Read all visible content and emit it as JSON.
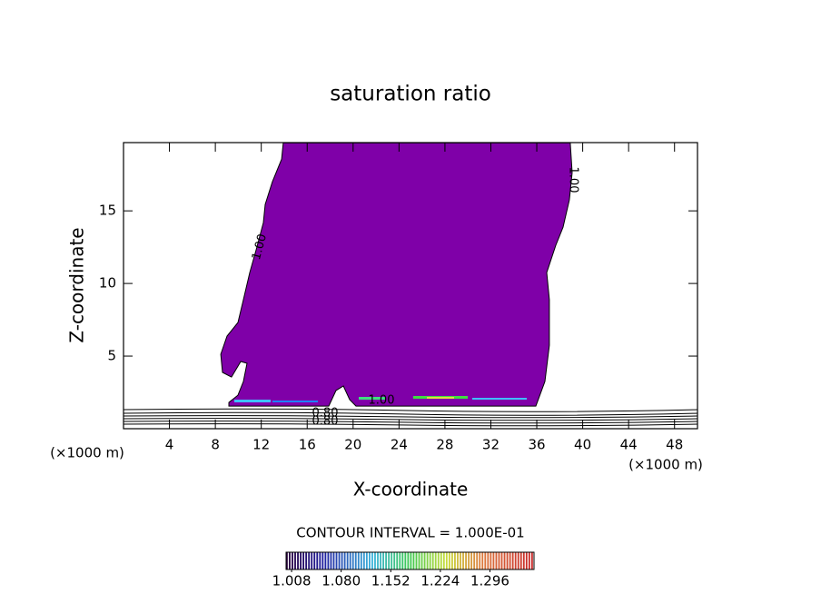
{
  "chart_data": {
    "type": "contour",
    "title": "saturation ratio",
    "xlabel": "X-coordinate",
    "ylabel": "Z-coordinate",
    "unit_label": "(×1000 m)",
    "xlim": [
      0,
      50
    ],
    "ylim": [
      0,
      19.7
    ],
    "xticks": [
      4,
      8,
      12,
      16,
      20,
      24,
      28,
      32,
      36,
      40,
      44,
      48
    ],
    "yticks": [
      5,
      10,
      15
    ],
    "region": {
      "color": "#7f00a8",
      "x": [
        13.92,
        13.77,
        12.97,
        12.34,
        12.18,
        11.55,
        11.0,
        10.44,
        9.97,
        9.02,
        8.47,
        8.62,
        9.41,
        10.21,
        10.76,
        10.44,
        9.97,
        9.18,
        9.18,
        17.88,
        18.51,
        19.15,
        19.7,
        20.25,
        35.92,
        36.71,
        37.1,
        37.1,
        36.87,
        37.66,
        38.29,
        38.84,
        39.08,
        38.92
      ],
      "y": [
        19.69,
        18.56,
        17.0,
        15.44,
        14.19,
        12.31,
        10.75,
        8.88,
        7.31,
        6.38,
        5.13,
        3.88,
        3.56,
        4.63,
        4.5,
        3.25,
        2.31,
        1.81,
        1.56,
        1.56,
        2.63,
        2.94,
        2.0,
        1.56,
        1.56,
        3.25,
        5.75,
        8.88,
        10.75,
        12.63,
        13.88,
        15.75,
        17.63,
        19.69
      ]
    },
    "contour_labels": [
      "1.00",
      "1.00",
      "1.00",
      "0.80",
      "0.80"
    ],
    "interval_label": "CONTOUR INTERVAL = 1.000E-01",
    "colorbar": {
      "clim": [
        1.0,
        1.36
      ],
      "ticks": [
        {
          "value": 1.008,
          "label": "1.008"
        },
        {
          "value": 1.08,
          "label": "1.080"
        },
        {
          "value": 1.152,
          "label": "1.152"
        },
        {
          "value": 1.224,
          "label": "1.224"
        },
        {
          "value": 1.296,
          "label": "1.296"
        }
      ]
    }
  }
}
